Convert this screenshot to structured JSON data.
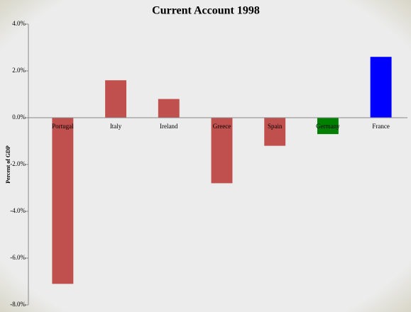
{
  "chart_data": {
    "type": "bar",
    "title": "Current Account 1998",
    "y_label": "Percent of GDP",
    "categories": [
      "Portugal",
      "Italy",
      "Ireland",
      "Greece",
      "Spain",
      "Germany",
      "France"
    ],
    "values": [
      -7.1,
      1.6,
      0.8,
      -2.8,
      -1.2,
      -0.7,
      2.6
    ],
    "colors": [
      "#c0504d",
      "#c0504d",
      "#c0504d",
      "#c0504d",
      "#c0504d",
      "#008000",
      "#0000ff"
    ],
    "ylim": [
      -8,
      4
    ],
    "yticks": [
      {
        "value": -8,
        "label": "-8.0%"
      },
      {
        "value": -6,
        "label": "-6.0%"
      },
      {
        "value": -4,
        "label": "-4.0%"
      },
      {
        "value": -2,
        "label": "-2.0%"
      },
      {
        "value": 0,
        "label": "0.0%"
      },
      {
        "value": 2,
        "label": "2.0%"
      },
      {
        "value": 4,
        "label": "4.0%"
      }
    ]
  }
}
